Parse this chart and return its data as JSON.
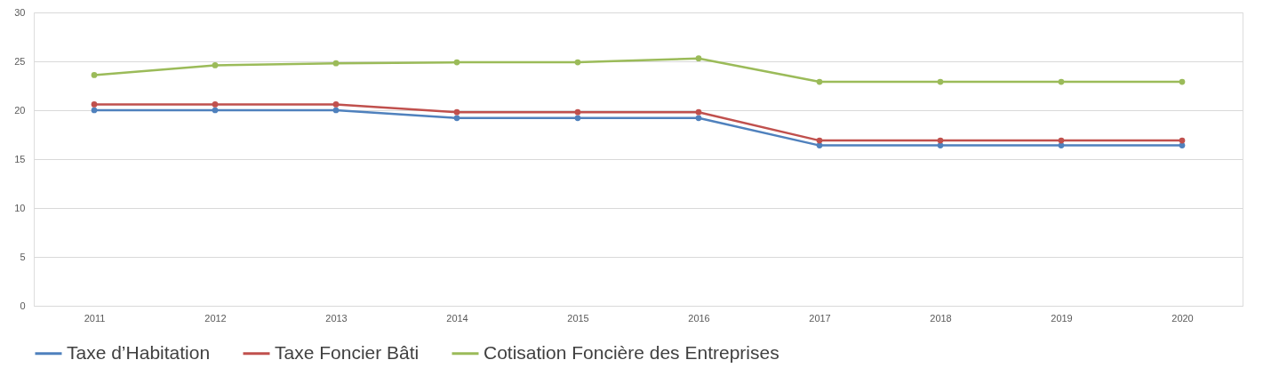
{
  "chart_data": {
    "type": "line",
    "categories": [
      "2011",
      "2012",
      "2013",
      "2014",
      "2015",
      "2016",
      "2017",
      "2018",
      "2019",
      "2020"
    ],
    "series": [
      {
        "name": "Taxe d’Habitation",
        "color": "#4f81bd",
        "values": [
          20.0,
          20.0,
          20.0,
          19.2,
          19.2,
          19.2,
          16.4,
          16.4,
          16.4,
          16.4
        ]
      },
      {
        "name": "Taxe Foncier Bâti",
        "color": "#c0504d",
        "values": [
          20.6,
          20.6,
          20.6,
          19.8,
          19.8,
          19.8,
          16.9,
          16.9,
          16.9,
          16.9
        ]
      },
      {
        "name": "Cotisation Foncière des Entreprises",
        "color": "#9bbb59",
        "values": [
          23.6,
          24.6,
          24.8,
          24.9,
          24.9,
          25.3,
          22.9,
          22.9,
          22.9,
          22.9
        ]
      }
    ],
    "ylim": [
      0,
      30
    ],
    "yticks": [
      0,
      5,
      10,
      15,
      20,
      25,
      30
    ],
    "grid": "y",
    "legend": "bottom",
    "marker": "circle",
    "line_style": "solid"
  }
}
